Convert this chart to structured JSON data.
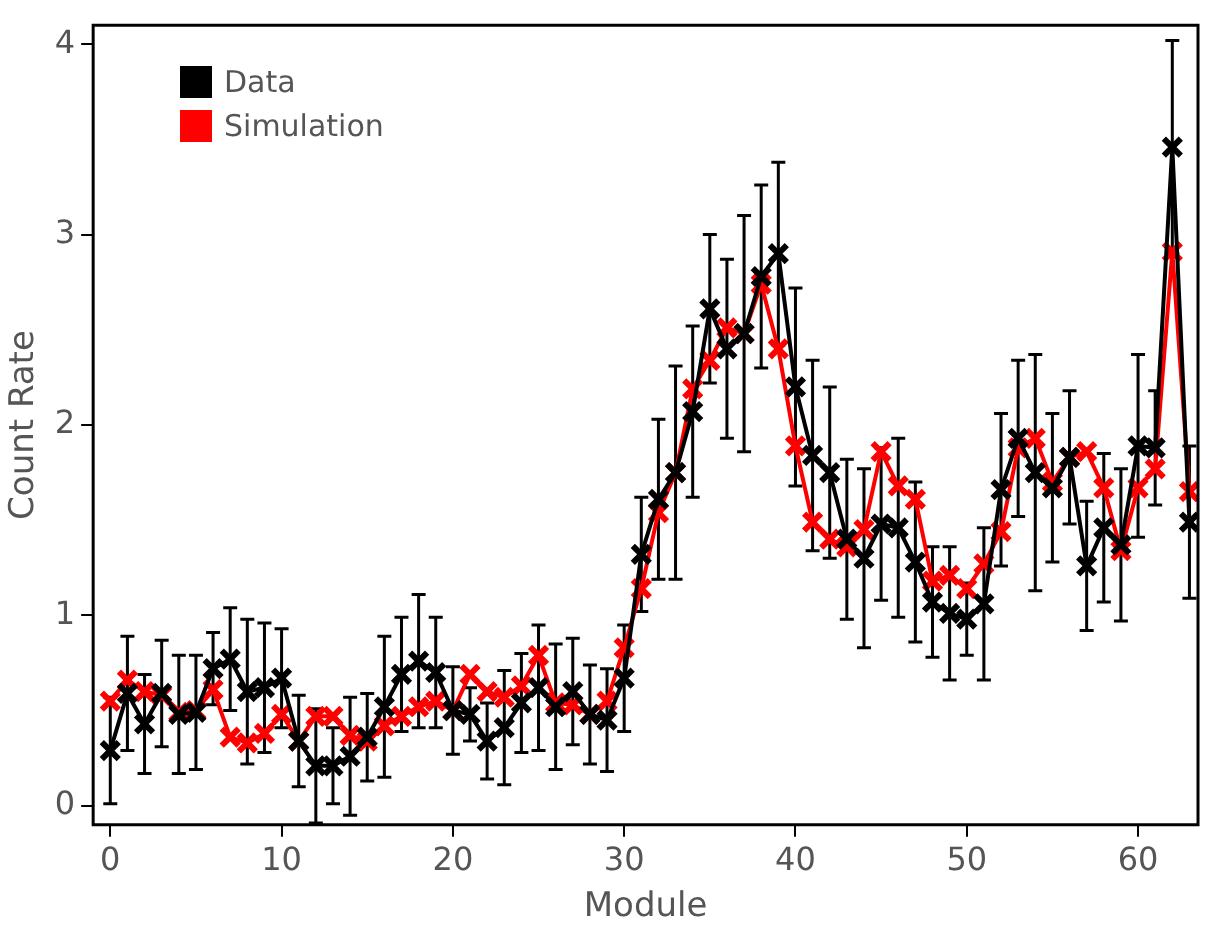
{
  "chart_data": {
    "type": "line",
    "xlabel": "Module",
    "ylabel": "Count Rate",
    "x": [
      0,
      1,
      2,
      3,
      4,
      5,
      6,
      7,
      8,
      9,
      10,
      11,
      12,
      13,
      14,
      15,
      16,
      17,
      18,
      19,
      20,
      21,
      22,
      23,
      24,
      25,
      26,
      27,
      28,
      29,
      30,
      31,
      32,
      33,
      34,
      35,
      36,
      37,
      38,
      39,
      40,
      41,
      42,
      43,
      44,
      45,
      46,
      47,
      48,
      49,
      50,
      51,
      52,
      53,
      54,
      55,
      56,
      57,
      58,
      59,
      60,
      61,
      62,
      63
    ],
    "xlim": [
      -1,
      63.5
    ],
    "xticks": [
      0,
      10,
      20,
      30,
      40,
      50,
      60
    ],
    "ylim": [
      -0.1,
      4.1
    ],
    "yticks": [
      0,
      1,
      2,
      3,
      4
    ],
    "grid": false,
    "legend": "top left",
    "marker": "cross",
    "line_style": "solid",
    "series": [
      {
        "name": "Data",
        "color": "#000000",
        "values": [
          0.29,
          0.59,
          0.43,
          0.59,
          0.48,
          0.49,
          0.72,
          0.77,
          0.6,
          0.62,
          0.67,
          0.34,
          0.21,
          0.21,
          0.26,
          0.36,
          0.52,
          0.69,
          0.76,
          0.7,
          0.5,
          0.48,
          0.34,
          0.41,
          0.54,
          0.62,
          0.52,
          0.6,
          0.48,
          0.45,
          0.67,
          1.32,
          1.61,
          1.75,
          2.07,
          2.61,
          2.4,
          2.48,
          2.78,
          2.9,
          2.2,
          1.84,
          1.75,
          1.4,
          1.3,
          1.48,
          1.46,
          1.28,
          1.07,
          1.01,
          0.98,
          1.06,
          1.66,
          1.93,
          1.75,
          1.67,
          1.83,
          1.26,
          1.46,
          1.37,
          1.89,
          1.88,
          3.46,
          1.49
        ],
        "errors": [
          0.28,
          0.3,
          0.26,
          0.28,
          0.31,
          0.3,
          0.19,
          0.27,
          0.38,
          0.34,
          0.26,
          0.24,
          0.3,
          0.2,
          0.31,
          0.23,
          0.37,
          0.3,
          0.35,
          0.29,
          0.23,
          0.14,
          0.2,
          0.3,
          0.26,
          0.33,
          0.33,
          0.28,
          0.26,
          0.27,
          0.28,
          0.3,
          0.42,
          0.56,
          0.45,
          0.39,
          0.47,
          0.62,
          0.48,
          0.48,
          0.52,
          0.5,
          0.45,
          0.42,
          0.47,
          0.4,
          0.47,
          0.42,
          0.29,
          0.35,
          0.19,
          0.4,
          0.4,
          0.41,
          0.62,
          0.39,
          0.35,
          0.34,
          0.39,
          0.4,
          0.48,
          0.3,
          0.56,
          0.4
        ]
      },
      {
        "name": "Simulation",
        "color": "#ff0000",
        "values": [
          0.55,
          0.66,
          0.6,
          0.58,
          0.49,
          0.5,
          0.61,
          0.36,
          0.33,
          0.38,
          0.48,
          0.34,
          0.47,
          0.47,
          0.37,
          0.34,
          0.42,
          0.47,
          0.52,
          0.55,
          0.5,
          0.69,
          0.6,
          0.57,
          0.63,
          0.79,
          0.54,
          0.53,
          0.48,
          0.55,
          0.83,
          1.14,
          1.54,
          1.75,
          2.19,
          2.34,
          2.51,
          2.48,
          2.74,
          2.4,
          1.89,
          1.49,
          1.4,
          1.36,
          1.45,
          1.86,
          1.68,
          1.61,
          1.18,
          1.21,
          1.14,
          1.27,
          1.44,
          1.88,
          1.93,
          1.7,
          1.83,
          1.86,
          1.67,
          1.34,
          1.67,
          1.77,
          2.91,
          1.65
        ]
      }
    ]
  }
}
